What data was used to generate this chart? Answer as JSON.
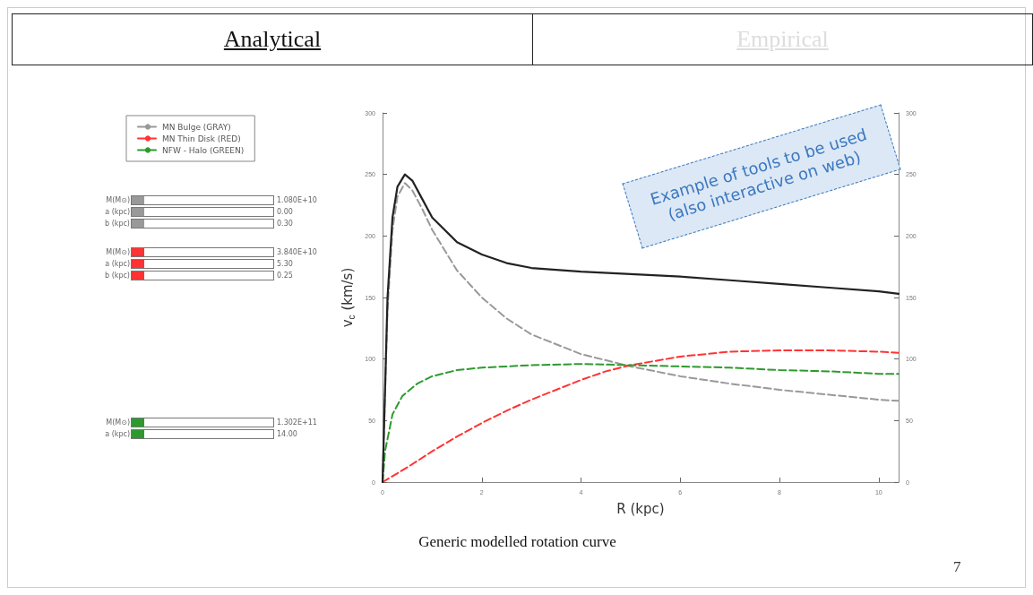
{
  "chart_data": {
    "type": "line",
    "title": "Analytical",
    "subtitle": "Empirical",
    "xlabel": "R (kpc)",
    "ylabel": "v$_{c}$ (km/s)",
    "xlim": [
      0,
      10.4
    ],
    "xticks": [
      0,
      2,
      4,
      6,
      8,
      10
    ],
    "ylim": [
      0,
      300
    ],
    "yticks": [
      0,
      50,
      100,
      150,
      200,
      250,
      300
    ],
    "y2lim": [
      0,
      300
    ],
    "y2ticks": [
      0,
      50,
      100,
      150,
      200,
      250,
      300
    ],
    "grid": false,
    "legend": "left",
    "marker": "none",
    "series": [
      {
        "color": "#222222",
        "line_style": "solid",
        "x": [
          0,
          0.1,
          0.2,
          0.3,
          0.45,
          0.6,
          0.8,
          1,
          1.5,
          2,
          2.5,
          3,
          4,
          5,
          6,
          7,
          8,
          9,
          10,
          10.4
        ],
        "values": [
          0,
          150,
          215,
          240,
          250,
          245,
          230,
          215,
          195,
          185,
          178,
          174,
          171,
          169,
          167,
          164,
          161,
          158,
          155,
          153
        ]
      },
      {
        "name": "MN Bulge (GRAY)",
        "color": "#999999",
        "line_style": "dashed",
        "x": [
          0,
          0.1,
          0.2,
          0.3,
          0.45,
          0.6,
          0.8,
          1,
          1.5,
          2,
          2.5,
          3,
          4,
          5,
          6,
          7,
          8,
          9,
          10,
          10.4
        ],
        "values": [
          0,
          140,
          205,
          232,
          243,
          237,
          222,
          205,
          172,
          150,
          133,
          120,
          104,
          94,
          86,
          80,
          75,
          71,
          67,
          66
        ]
      },
      {
        "name": "MN Thin Disk (RED)",
        "color": "#ff3333",
        "line_style": "dashed",
        "x": [
          0,
          0.5,
          1,
          1.5,
          2,
          2.5,
          3,
          3.5,
          4,
          4.5,
          5,
          6,
          7,
          8,
          9,
          10,
          10.4
        ],
        "values": [
          0,
          12,
          25,
          37,
          48,
          58,
          67,
          75,
          83,
          90,
          95,
          102,
          106,
          107,
          107,
          106,
          105
        ]
      },
      {
        "name": "NFW - Halo (GREEN)",
        "color": "#2e9a2e",
        "line_style": "dashed",
        "x": [
          0,
          0.05,
          0.2,
          0.4,
          0.7,
          1,
          1.5,
          2,
          3,
          4,
          5,
          6,
          7,
          8,
          9,
          10,
          10.4
        ],
        "values": [
          0,
          25,
          55,
          70,
          80,
          86,
          91,
          93,
          95,
          96,
          95,
          94,
          93,
          91,
          90,
          88,
          88
        ]
      }
    ],
    "annotations": [
      "Example of tools to be used\n(also interactive on web)",
      "Generic modelled rotation curve",
      "7",
      "M(M⊙)",
      "1.080E+10",
      "a (kpc)",
      "0.00",
      "b (kpc)",
      "0.30",
      "M(M⊙)",
      "3.840E+10",
      "a (kpc)",
      "5.30",
      "b (kpc)",
      "0.25",
      "M(M⊙)",
      "1.302E+11",
      "a (kpc)",
      "14.00"
    ]
  }
}
